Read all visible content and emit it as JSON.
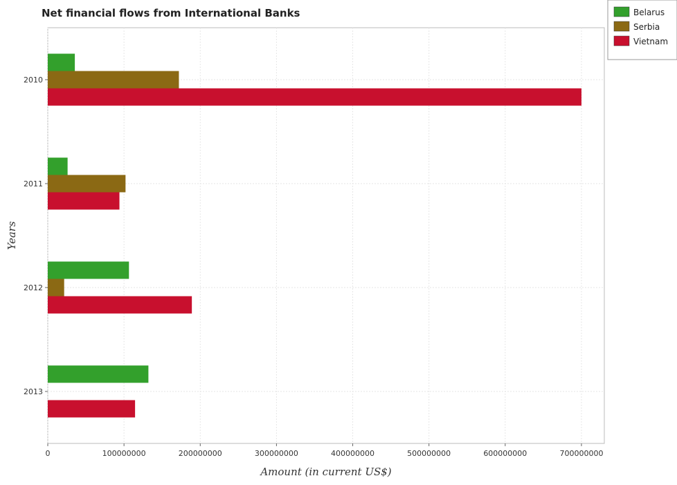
{
  "chart_data": {
    "type": "bar",
    "orientation": "horizontal",
    "title": "Net financial flows from International Banks",
    "xlabel": "Amount (in current US$)",
    "ylabel": "Years",
    "categories": [
      "2010",
      "2011",
      "2012",
      "2013"
    ],
    "series": [
      {
        "name": "Belarus",
        "color": "#33a02c",
        "values": [
          35500000,
          26000000,
          106500000,
          132000000
        ]
      },
      {
        "name": "Serbia",
        "color": "#8b6914",
        "values": [
          172000000,
          102000000,
          21500000,
          0
        ]
      },
      {
        "name": "Vietnam",
        "color": "#c8102e",
        "values": [
          700000000,
          94000000,
          189000000,
          114500000
        ]
      }
    ],
    "xlim": [
      0,
      730000000
    ],
    "xticks": [
      0,
      100000000,
      200000000,
      300000000,
      400000000,
      500000000,
      600000000,
      700000000
    ],
    "xtick_labels": [
      "0",
      "100000000",
      "200000000",
      "300000000",
      "400000000",
      "500000000",
      "600000000",
      "700000000"
    ],
    "grid": true,
    "legend_position": "top-right"
  }
}
